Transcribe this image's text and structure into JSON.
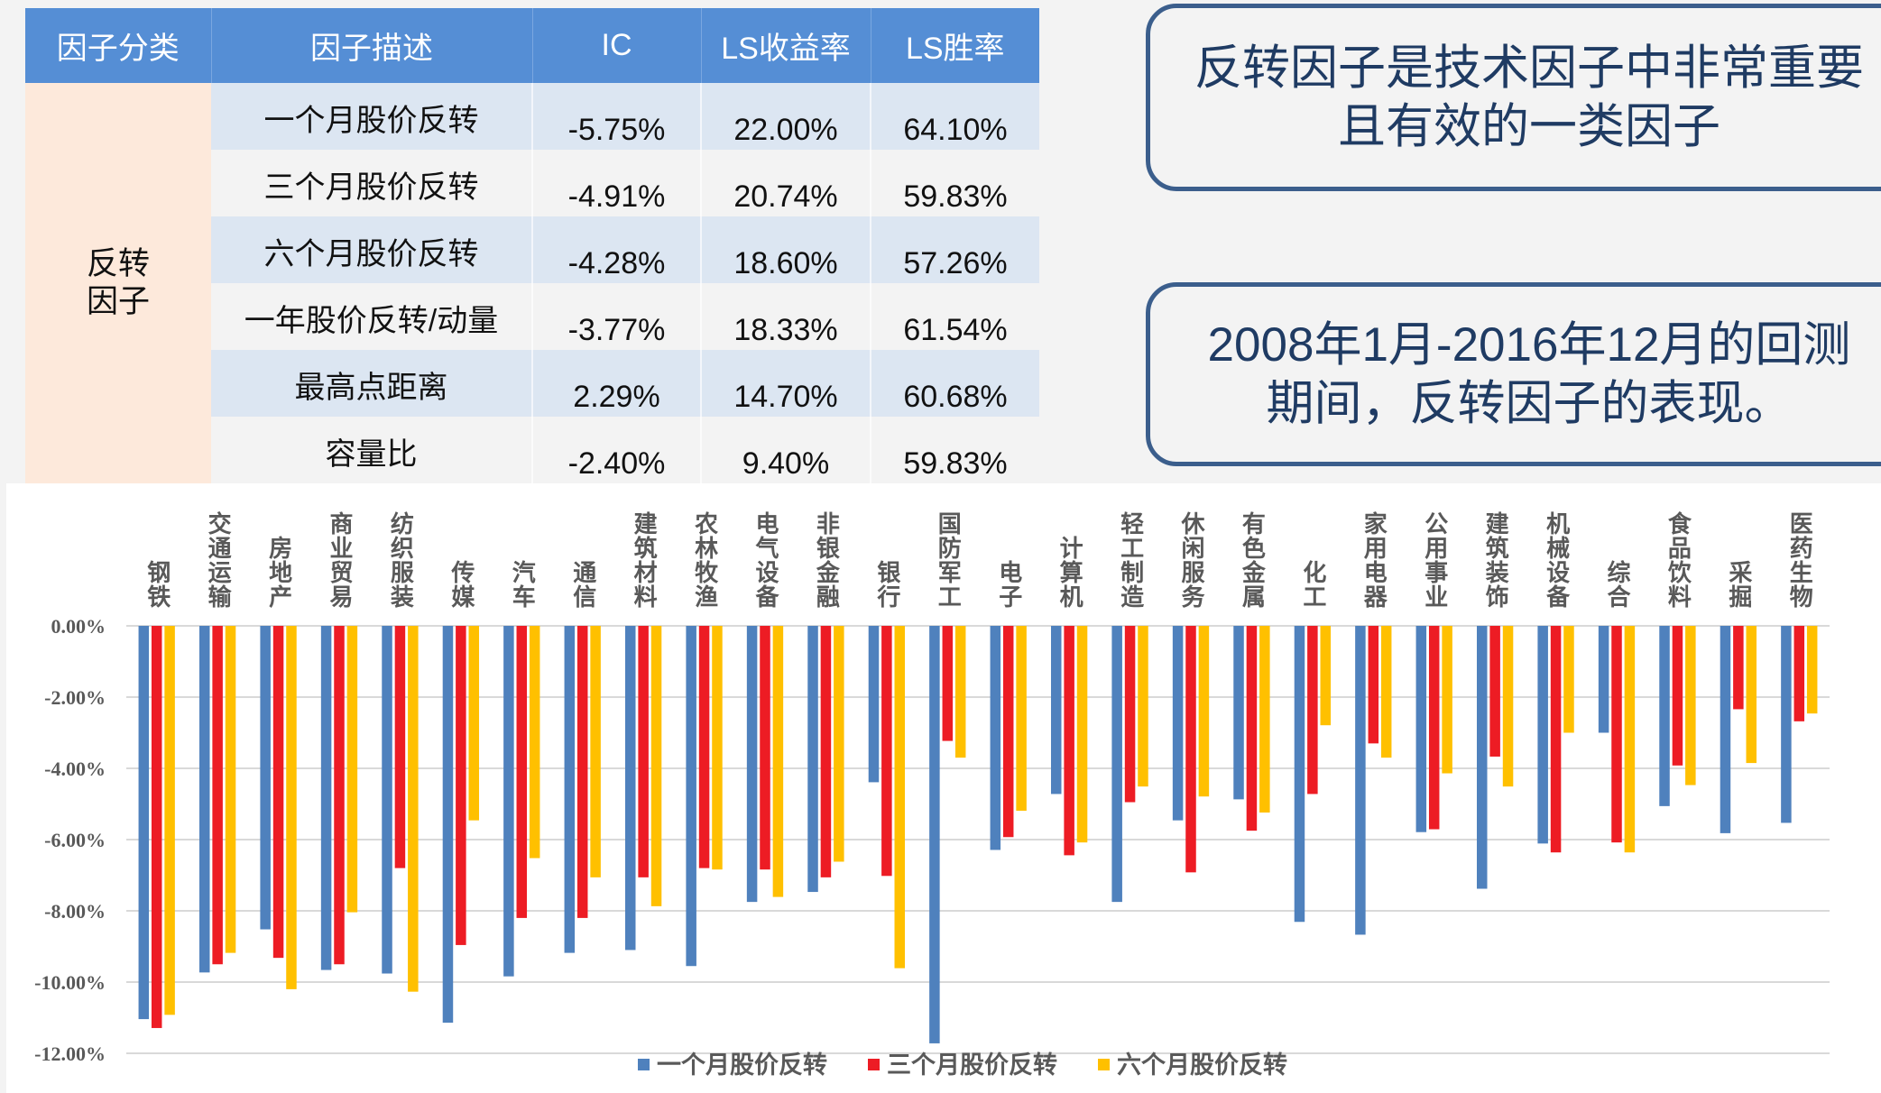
{
  "table": {
    "headers": [
      "因子分类",
      "因子描述",
      "IC",
      "LS收益率",
      "LS胜率"
    ],
    "category_lines": [
      "反转",
      "因子"
    ],
    "rows": [
      {
        "description": "一个月股价反转",
        "ic": "-5.75%",
        "ls_return": "22.00%",
        "ls_win_rate": "64.10%"
      },
      {
        "description": "三个月股价反转",
        "ic": "-4.91%",
        "ls_return": "20.74%",
        "ls_win_rate": "59.83%"
      },
      {
        "description": "六个月股价反转",
        "ic": "-4.28%",
        "ls_return": "18.60%",
        "ls_win_rate": "57.26%"
      },
      {
        "description": "一年股价反转/动量",
        "ic": "-3.77%",
        "ls_return": "18.33%",
        "ls_win_rate": "61.54%"
      },
      {
        "description": "最高点距离",
        "ic": "2.29%",
        "ls_return": "14.70%",
        "ls_win_rate": "60.68%"
      },
      {
        "description": "容量比",
        "ic": "-2.40%",
        "ls_return": "9.40%",
        "ls_win_rate": "59.83%"
      }
    ]
  },
  "callouts": [
    {
      "lines": [
        "反转因子是技术因子中非常重要",
        "且有效的一类因子"
      ]
    },
    {
      "lines": [
        "2008年1月-2016年12月的回测",
        "期间，反转因子的表现。"
      ]
    }
  ],
  "chart_data": {
    "type": "bar",
    "title": "",
    "xlabel": "",
    "ylabel": "",
    "unit": "%",
    "ylim": [
      -12,
      0
    ],
    "yticks": [
      0,
      -2,
      -4,
      -6,
      -8,
      -10,
      -12
    ],
    "ytick_labels": [
      "0.00%",
      "-2.00%",
      "-4.00%",
      "-6.00%",
      "-8.00%",
      "-10.00%",
      "-12.00%"
    ],
    "grid": true,
    "legend_position": "bottom",
    "category_axis_position": "top",
    "categories": [
      "钢铁",
      "交通运输",
      "房地产",
      "商业贸易",
      "纺织服装",
      "传媒",
      "汽车",
      "通信",
      "建筑材料",
      "农林牧渔",
      "电气设备",
      "非银金融",
      "银行",
      "国防军工",
      "电子",
      "计算机",
      "轻工制造",
      "休闲服务",
      "有色金属",
      "化工",
      "家用电器",
      "公用事业",
      "建筑装饰",
      "机械设备",
      "综合",
      "食品饮料",
      "采掘",
      "医药生物"
    ],
    "series": [
      {
        "name": "一个月股价反转",
        "color": "#4F81BD",
        "values": [
          -11.04,
          -9.73,
          -8.52,
          -9.66,
          -9.76,
          -11.14,
          -9.84,
          -9.18,
          -9.1,
          -9.55,
          -7.75,
          -7.47,
          -4.39,
          -11.72,
          -6.29,
          -4.72,
          -7.75,
          -5.46,
          -4.87,
          -8.31,
          -8.67,
          -5.79,
          -7.38,
          -6.11,
          -3.0,
          -5.06,
          -5.82,
          -5.53
        ]
      },
      {
        "name": "三个月股价反转",
        "color": "#ED1C24",
        "values": [
          -11.29,
          -9.5,
          -9.32,
          -9.5,
          -6.8,
          -8.96,
          -8.2,
          -8.2,
          -7.06,
          -6.8,
          -6.84,
          -7.06,
          -7.02,
          -3.23,
          -5.93,
          -6.44,
          -4.95,
          -6.92,
          -5.75,
          -4.72,
          -3.3,
          -5.71,
          -3.67,
          -6.36,
          -6.08,
          -3.92,
          -2.34,
          -2.68
        ]
      },
      {
        "name": "六个月股价反转",
        "color": "#FFC000",
        "values": [
          -10.92,
          -9.18,
          -10.2,
          -8.04,
          -10.27,
          -5.46,
          -6.52,
          -7.06,
          -7.87,
          -6.84,
          -7.61,
          -6.62,
          -9.61,
          -3.7,
          -5.19,
          -6.08,
          -4.51,
          -4.79,
          -5.24,
          -2.79,
          -3.7,
          -4.14,
          -4.51,
          -3.0,
          -6.36,
          -4.47,
          -3.85,
          -2.46
        ]
      }
    ]
  }
}
